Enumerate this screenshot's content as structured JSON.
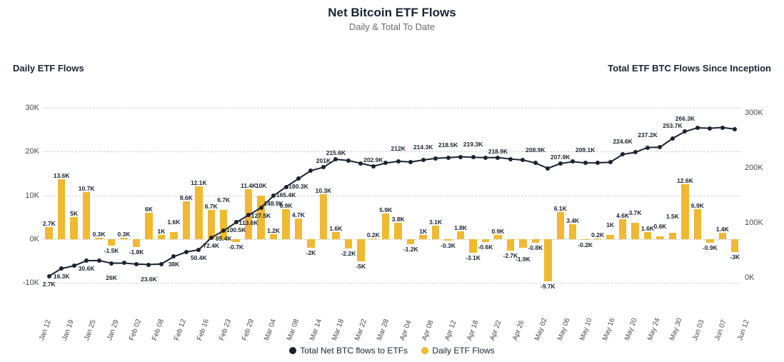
{
  "chart": {
    "title": "Net Bitcoin ETF Flows",
    "subtitle": "Daily & Total To Date",
    "left_axis_label": "Daily ETF Flows",
    "right_axis_label": "Total ETF BTC Flows Since Inception",
    "colors": {
      "line": "#1a2332",
      "bar": "#f0b932",
      "background": "#ffffff",
      "grid": "#d0d0d0",
      "text": "#1a2332"
    },
    "left_axis": {
      "min": -15,
      "max": 35,
      "ticks": [
        {
          "v": -10,
          "l": "-10K"
        },
        {
          "v": 0,
          "l": "0K"
        },
        {
          "v": 10,
          "l": "10K"
        },
        {
          "v": 20,
          "l": "20K"
        },
        {
          "v": 30,
          "l": "30K"
        }
      ]
    },
    "right_axis": {
      "min": -50,
      "max": 350,
      "ticks": [
        {
          "v": 0,
          "l": "0K"
        },
        {
          "v": 100,
          "l": "100K"
        },
        {
          "v": 200,
          "l": "200K"
        },
        {
          "v": 300,
          "l": "300K"
        }
      ]
    },
    "x_labels": [
      "Jan 12",
      "Jan 19",
      "Jan 25",
      "Jan 29",
      "Feb 02",
      "Feb 08",
      "Feb 12",
      "Feb 16",
      "Feb 23",
      "Feb 29",
      "Mar 04",
      "Mar 08",
      "Mar 14",
      "Mar 18",
      "Mar 22",
      "Mar 28",
      "Apr 04",
      "Apr 08",
      "Apr 12",
      "Apr 18",
      "Apr 22",
      "Apr 26",
      "May 02",
      "May 06",
      "May 10",
      "May 16",
      "May 20",
      "May 24",
      "May 30",
      "Jun 03",
      "Jun 07",
      "Jun 12"
    ],
    "legend": {
      "line": "Total Net BTC flows to ETFs",
      "bar": "Daily ETF Flows"
    },
    "bars": [
      {
        "v": 2.7,
        "l": "2.7K"
      },
      {
        "v": 13.6,
        "l": "13.6K"
      },
      {
        "v": 5,
        "l": "5K"
      },
      {
        "v": 10.7,
        "l": "10.7K"
      },
      {
        "v": 0.3,
        "l": "0.3K"
      },
      {
        "v": -1.5,
        "l": "-1.5K"
      },
      {
        "v": 0.3,
        "l": "0.3K"
      },
      {
        "v": -1.8,
        "l": "-1.8K"
      },
      {
        "v": 6,
        "l": "6K"
      },
      {
        "v": 1,
        "l": "1K"
      },
      {
        "v": 1.6,
        "l": "1.6K"
      },
      {
        "v": 8.6,
        "l": "8.6K"
      },
      {
        "v": 12.1,
        "l": "12.1K"
      },
      {
        "v": 6.7,
        "l": "6.7K"
      },
      {
        "v": 6.7,
        "l": "6.7K"
      },
      {
        "v": -0.7,
        "l": "-0.7K"
      },
      {
        "v": 11.4,
        "l": "11.4K"
      },
      {
        "v": 10,
        "l": "10K"
      },
      {
        "v": 1.2,
        "l": "1.2K"
      },
      {
        "v": 6.9,
        "l": "6.9K"
      },
      {
        "v": 4.7,
        "l": "4.7K"
      },
      {
        "v": -2,
        "l": "-2K"
      },
      {
        "v": 10.3,
        "l": "10.3K"
      },
      {
        "v": 1.6,
        "l": "1.6K"
      },
      {
        "v": -2.2,
        "l": "-2.2K"
      },
      {
        "v": -5,
        "l": "-5K"
      },
      {
        "v": 0.2,
        "l": "0.2K"
      },
      {
        "v": 5.9,
        "l": "5.9K"
      },
      {
        "v": 3.8,
        "l": "3.8K"
      },
      {
        "v": -1.2,
        "l": "-1.2K"
      },
      {
        "v": 1,
        "l": "1K"
      },
      {
        "v": 3.1,
        "l": "3.1K"
      },
      {
        "v": -0.3,
        "l": "-0.3K"
      },
      {
        "v": 1.8,
        "l": "1.8K"
      },
      {
        "v": -3.1,
        "l": "-3.1K"
      },
      {
        "v": -0.6,
        "l": "-0.6K"
      },
      {
        "v": 0.9,
        "l": "0.9K"
      },
      {
        "v": -2.7,
        "l": "-2.7K"
      },
      {
        "v": -1.9,
        "l": "-1.9K"
      },
      {
        "v": -0.8,
        "l": "-0.8K"
      },
      {
        "v": -9.7,
        "l": "-9.7K"
      },
      {
        "v": 6.1,
        "l": "6.1K"
      },
      {
        "v": 3.4,
        "l": "3.4K"
      },
      {
        "v": -0.2,
        "l": "-0.2K"
      },
      {
        "v": 0.2,
        "l": "0.2K"
      },
      {
        "v": 1,
        "l": "1K"
      },
      {
        "v": 4.6,
        "l": "4.6K"
      },
      {
        "v": 3.7,
        "l": "3.7K"
      },
      {
        "v": 1.6,
        "l": "1.6K"
      },
      {
        "v": 0.6,
        "l": "0.6K"
      },
      {
        "v": 1.5,
        "l": "1.5K"
      },
      {
        "v": 12.6,
        "l": "12.6K"
      },
      {
        "v": 6.9,
        "l": "6.9K"
      },
      {
        "v": -0.9,
        "l": "-0.9K"
      },
      {
        "v": 1.4,
        "l": "1.4K"
      },
      {
        "v": -3,
        "l": "-3K"
      }
    ],
    "line_points": [
      {
        "v": 2.7,
        "l": "2.7K"
      },
      {
        "v": 16.3,
        "l": "16.3K"
      },
      {
        "v": 21.3
      },
      {
        "v": 30.6,
        "l": "30.6K"
      },
      {
        "v": 30.9
      },
      {
        "v": 26,
        "l": "26K"
      },
      {
        "v": 26.3
      },
      {
        "v": 24.5
      },
      {
        "v": 23.6,
        "l": "23.6K"
      },
      {
        "v": 24.6
      },
      {
        "v": 38,
        "l": "38K"
      },
      {
        "v": 46.6
      },
      {
        "v": 50.4,
        "l": "50.4K"
      },
      {
        "v": 72.4,
        "l": "72.4K"
      },
      {
        "v": 85.4,
        "l": "85.4K"
      },
      {
        "v": 100.5,
        "l": "100.5K"
      },
      {
        "v": 113.6,
        "l": "113.6K"
      },
      {
        "v": 127.5,
        "l": "127.5K"
      },
      {
        "v": 148.9,
        "l": "148.9K"
      },
      {
        "v": 165.4,
        "l": "165.4K"
      },
      {
        "v": 180.3,
        "l": "180.3K"
      },
      {
        "v": 195
      },
      {
        "v": 201,
        "l": "201K"
      },
      {
        "v": 215.6,
        "l": "215.6K"
      },
      {
        "v": 213.4
      },
      {
        "v": 208.4
      },
      {
        "v": 202.9,
        "l": "202.9K"
      },
      {
        "v": 208.8
      },
      {
        "v": 212,
        "l": "212K"
      },
      {
        "v": 210.8
      },
      {
        "v": 214.3,
        "l": "214.3K"
      },
      {
        "v": 217.4
      },
      {
        "v": 218.5,
        "l": "218.5K"
      },
      {
        "v": 220.3
      },
      {
        "v": 219.3,
        "l": "219.3K"
      },
      {
        "v": 218.7
      },
      {
        "v": 218.9,
        "l": "218.9K"
      },
      {
        "v": 216.2
      },
      {
        "v": 214.3
      },
      {
        "v": 208.9,
        "l": "208.9K"
      },
      {
        "v": 199.2
      },
      {
        "v": 207.9,
        "l": "207.9K"
      },
      {
        "v": 211.3
      },
      {
        "v": 209.1,
        "l": "209.1K"
      },
      {
        "v": 209.3
      },
      {
        "v": 210.3
      },
      {
        "v": 224.6,
        "l": "224.6K"
      },
      {
        "v": 228.3
      },
      {
        "v": 237.2,
        "l": "237.2K"
      },
      {
        "v": 237.8
      },
      {
        "v": 253.7,
        "l": "253.7K"
      },
      {
        "v": 266.3,
        "l": "266.3K"
      },
      {
        "v": 273.2
      },
      {
        "v": 272.3
      },
      {
        "v": 273.7
      },
      {
        "v": 270.7
      }
    ]
  }
}
